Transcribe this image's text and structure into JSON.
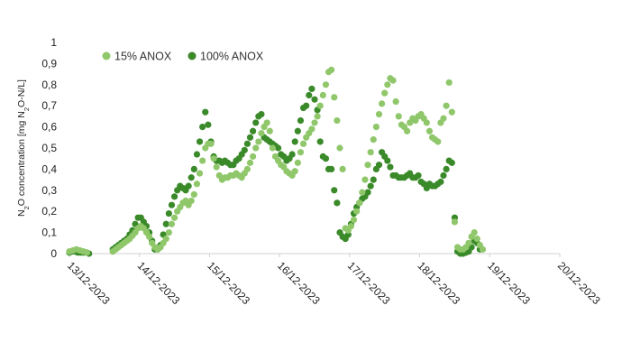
{
  "chart_data": {
    "type": "scatter",
    "ylabel": "N2O concentration [mg N2O-N/L]",
    "ylim": [
      0,
      1
    ],
    "yticks": [
      "0",
      "0,1",
      "0,2",
      "0,3",
      "0,4",
      "0,5",
      "0,6",
      "0,7",
      "0,8",
      "0,9",
      "1"
    ],
    "xlim": [
      "13/12-2023",
      "20/12-2023"
    ],
    "xticks": [
      "13/12-2023",
      "14/12-2023",
      "15/12-2023",
      "16/12-2023",
      "17/12-2023",
      "18/12-2023",
      "19/12-2023",
      "20/12-2023"
    ],
    "grid": false,
    "legend_position": "top-left",
    "x_unit": "days after 13/12-2023 00:00",
    "series": [
      {
        "name": "15% ANOX",
        "color": "#8fc76a",
        "points": [
          [
            0.0,
            0.01
          ],
          [
            0.05,
            0.015
          ],
          [
            0.1,
            0.02
          ],
          [
            0.15,
            0.015
          ],
          [
            0.2,
            0.01
          ],
          [
            0.25,
            0.005
          ],
          [
            0.62,
            0.01
          ],
          [
            0.66,
            0.02
          ],
          [
            0.7,
            0.03
          ],
          [
            0.74,
            0.04
          ],
          [
            0.78,
            0.05
          ],
          [
            0.82,
            0.06
          ],
          [
            0.86,
            0.07
          ],
          [
            0.9,
            0.085
          ],
          [
            0.94,
            0.1
          ],
          [
            0.98,
            0.12
          ],
          [
            1.02,
            0.13
          ],
          [
            1.06,
            0.12
          ],
          [
            1.1,
            0.1
          ],
          [
            1.14,
            0.08
          ],
          [
            1.18,
            0.05
          ],
          [
            1.22,
            0.03
          ],
          [
            1.26,
            0.02
          ],
          [
            1.3,
            0.03
          ],
          [
            1.34,
            0.05
          ],
          [
            1.38,
            0.07
          ],
          [
            1.42,
            0.1
          ],
          [
            1.46,
            0.14
          ],
          [
            1.5,
            0.17
          ],
          [
            1.54,
            0.2
          ],
          [
            1.58,
            0.22
          ],
          [
            1.62,
            0.24
          ],
          [
            1.66,
            0.25
          ],
          [
            1.7,
            0.23
          ],
          [
            1.74,
            0.25
          ],
          [
            1.78,
            0.28
          ],
          [
            1.82,
            0.33
          ],
          [
            1.86,
            0.38
          ],
          [
            1.9,
            0.44
          ],
          [
            1.94,
            0.5
          ],
          [
            1.98,
            0.52
          ],
          [
            2.02,
            0.52
          ],
          [
            2.06,
            0.45
          ],
          [
            2.1,
            0.41
          ],
          [
            2.14,
            0.37
          ],
          [
            2.18,
            0.35
          ],
          [
            2.22,
            0.36
          ],
          [
            2.26,
            0.36
          ],
          [
            2.3,
            0.37
          ],
          [
            2.34,
            0.37
          ],
          [
            2.38,
            0.38
          ],
          [
            2.42,
            0.37
          ],
          [
            2.46,
            0.36
          ],
          [
            2.5,
            0.38
          ],
          [
            2.54,
            0.4
          ],
          [
            2.58,
            0.43
          ],
          [
            2.62,
            0.46
          ],
          [
            2.66,
            0.5
          ],
          [
            2.7,
            0.53
          ],
          [
            2.74,
            0.57
          ],
          [
            2.78,
            0.6
          ],
          [
            2.82,
            0.62
          ],
          [
            2.86,
            0.58
          ],
          [
            2.9,
            0.5
          ],
          [
            2.94,
            0.46
          ],
          [
            2.98,
            0.44
          ],
          [
            3.02,
            0.42
          ],
          [
            3.06,
            0.41
          ],
          [
            3.1,
            0.39
          ],
          [
            3.14,
            0.38
          ],
          [
            3.18,
            0.37
          ],
          [
            3.22,
            0.39
          ],
          [
            3.26,
            0.43
          ],
          [
            3.3,
            0.48
          ],
          [
            3.34,
            0.52
          ],
          [
            3.38,
            0.55
          ],
          [
            3.42,
            0.57
          ],
          [
            3.46,
            0.59
          ],
          [
            3.5,
            0.62
          ],
          [
            3.54,
            0.65
          ],
          [
            3.58,
            0.7
          ],
          [
            3.62,
            0.75
          ],
          [
            3.66,
            0.8
          ],
          [
            3.7,
            0.86
          ],
          [
            3.74,
            0.87
          ],
          [
            3.78,
            0.74
          ],
          [
            3.82,
            0.63
          ],
          [
            3.86,
            0.5
          ],
          [
            3.9,
            0.4
          ],
          [
            3.94,
            0.12
          ],
          [
            3.98,
            0.11
          ],
          [
            4.02,
            0.13
          ],
          [
            4.06,
            0.16
          ],
          [
            4.1,
            0.2
          ],
          [
            4.14,
            0.24
          ],
          [
            4.18,
            0.29
          ],
          [
            4.22,
            0.35
          ],
          [
            4.26,
            0.42
          ],
          [
            4.3,
            0.48
          ],
          [
            4.34,
            0.54
          ],
          [
            4.38,
            0.6
          ],
          [
            4.42,
            0.66
          ],
          [
            4.46,
            0.71
          ],
          [
            4.5,
            0.76
          ],
          [
            4.54,
            0.8
          ],
          [
            4.58,
            0.83
          ],
          [
            4.62,
            0.82
          ],
          [
            4.66,
            0.72
          ],
          [
            4.7,
            0.65
          ],
          [
            4.74,
            0.61
          ],
          [
            4.78,
            0.6
          ],
          [
            4.82,
            0.58
          ],
          [
            4.86,
            0.62
          ],
          [
            4.9,
            0.64
          ],
          [
            4.94,
            0.63
          ],
          [
            4.98,
            0.65
          ],
          [
            5.02,
            0.66
          ],
          [
            5.06,
            0.64
          ],
          [
            5.1,
            0.62
          ],
          [
            5.14,
            0.58
          ],
          [
            5.18,
            0.55
          ],
          [
            5.22,
            0.54
          ],
          [
            5.26,
            0.53
          ],
          [
            5.3,
            0.62
          ],
          [
            5.34,
            0.64
          ],
          [
            5.38,
            0.7
          ],
          [
            5.42,
            0.81
          ],
          [
            5.46,
            0.67
          ],
          [
            5.5,
            0.15
          ],
          [
            5.54,
            0.03
          ],
          [
            5.58,
            0.02
          ],
          [
            5.62,
            0.02
          ],
          [
            5.66,
            0.03
          ],
          [
            5.7,
            0.05
          ],
          [
            5.74,
            0.08
          ],
          [
            5.78,
            0.1
          ],
          [
            5.82,
            0.07
          ],
          [
            5.86,
            0.04
          ],
          [
            5.9,
            0.02
          ]
        ]
      },
      {
        "name": "100% ANOX",
        "color": "#3a8a2a",
        "points": [
          [
            0.0,
            0.005
          ],
          [
            0.04,
            0.01
          ],
          [
            0.08,
            0.01
          ],
          [
            0.12,
            0.005
          ],
          [
            0.16,
            0.005
          ],
          [
            0.2,
            0.005
          ],
          [
            0.24,
            0.005
          ],
          [
            0.28,
            0.0
          ],
          [
            0.62,
            0.02
          ],
          [
            0.66,
            0.03
          ],
          [
            0.7,
            0.04
          ],
          [
            0.74,
            0.05
          ],
          [
            0.78,
            0.06
          ],
          [
            0.82,
            0.07
          ],
          [
            0.86,
            0.09
          ],
          [
            0.9,
            0.11
          ],
          [
            0.94,
            0.14
          ],
          [
            0.98,
            0.17
          ],
          [
            1.02,
            0.17
          ],
          [
            1.06,
            0.15
          ],
          [
            1.1,
            0.13
          ],
          [
            1.14,
            0.1
          ],
          [
            1.18,
            0.06
          ],
          [
            1.22,
            0.02
          ],
          [
            1.26,
            0.02
          ],
          [
            1.3,
            0.04
          ],
          [
            1.34,
            0.09
          ],
          [
            1.38,
            0.14
          ],
          [
            1.42,
            0.19
          ],
          [
            1.46,
            0.23
          ],
          [
            1.5,
            0.27
          ],
          [
            1.54,
            0.3
          ],
          [
            1.58,
            0.32
          ],
          [
            1.62,
            0.31
          ],
          [
            1.66,
            0.3
          ],
          [
            1.7,
            0.32
          ],
          [
            1.74,
            0.36
          ],
          [
            1.78,
            0.4
          ],
          [
            1.82,
            0.47
          ],
          [
            1.86,
            0.53
          ],
          [
            1.9,
            0.6
          ],
          [
            1.94,
            0.67
          ],
          [
            1.98,
            0.61
          ],
          [
            2.02,
            0.53
          ],
          [
            2.06,
            0.46
          ],
          [
            2.1,
            0.44
          ],
          [
            2.14,
            0.44
          ],
          [
            2.18,
            0.43
          ],
          [
            2.22,
            0.44
          ],
          [
            2.26,
            0.43
          ],
          [
            2.3,
            0.42
          ],
          [
            2.34,
            0.42
          ],
          [
            2.38,
            0.44
          ],
          [
            2.42,
            0.45
          ],
          [
            2.46,
            0.47
          ],
          [
            2.5,
            0.49
          ],
          [
            2.54,
            0.52
          ],
          [
            2.58,
            0.55
          ],
          [
            2.62,
            0.58
          ],
          [
            2.66,
            0.62
          ],
          [
            2.7,
            0.65
          ],
          [
            2.74,
            0.66
          ],
          [
            2.78,
            0.55
          ],
          [
            2.82,
            0.54
          ],
          [
            2.86,
            0.53
          ],
          [
            2.9,
            0.52
          ],
          [
            2.94,
            0.51
          ],
          [
            2.98,
            0.5
          ],
          [
            3.02,
            0.47
          ],
          [
            3.06,
            0.46
          ],
          [
            3.1,
            0.44
          ],
          [
            3.14,
            0.45
          ],
          [
            3.18,
            0.47
          ],
          [
            3.22,
            0.53
          ],
          [
            3.26,
            0.58
          ],
          [
            3.3,
            0.63
          ],
          [
            3.34,
            0.69
          ],
          [
            3.38,
            0.7
          ],
          [
            3.42,
            0.75
          ],
          [
            3.46,
            0.78
          ],
          [
            3.5,
            0.73
          ],
          [
            3.54,
            0.68
          ],
          [
            3.58,
            0.53
          ],
          [
            3.62,
            0.46
          ],
          [
            3.66,
            0.45
          ],
          [
            3.7,
            0.4
          ],
          [
            3.74,
            0.4
          ],
          [
            3.78,
            0.3
          ],
          [
            3.82,
            0.24
          ],
          [
            3.86,
            0.1
          ],
          [
            3.9,
            0.08
          ],
          [
            3.94,
            0.07
          ],
          [
            3.98,
            0.09
          ],
          [
            4.02,
            0.14
          ],
          [
            4.06,
            0.19
          ],
          [
            4.1,
            0.22
          ],
          [
            4.14,
            0.24
          ],
          [
            4.18,
            0.26
          ],
          [
            4.22,
            0.27
          ],
          [
            4.26,
            0.29
          ],
          [
            4.3,
            0.32
          ],
          [
            4.34,
            0.35
          ],
          [
            4.38,
            0.4
          ],
          [
            4.42,
            0.42
          ],
          [
            4.46,
            0.48
          ],
          [
            4.5,
            0.46
          ],
          [
            4.54,
            0.44
          ],
          [
            4.58,
            0.41
          ],
          [
            4.62,
            0.37
          ],
          [
            4.66,
            0.37
          ],
          [
            4.7,
            0.36
          ],
          [
            4.74,
            0.36
          ],
          [
            4.78,
            0.36
          ],
          [
            4.82,
            0.37
          ],
          [
            4.86,
            0.38
          ],
          [
            4.9,
            0.36
          ],
          [
            4.94,
            0.36
          ],
          [
            4.98,
            0.37
          ],
          [
            5.02,
            0.34
          ],
          [
            5.06,
            0.33
          ],
          [
            5.1,
            0.31
          ],
          [
            5.14,
            0.33
          ],
          [
            5.18,
            0.32
          ],
          [
            5.22,
            0.32
          ],
          [
            5.26,
            0.33
          ],
          [
            5.3,
            0.34
          ],
          [
            5.34,
            0.37
          ],
          [
            5.38,
            0.4
          ],
          [
            5.42,
            0.44
          ],
          [
            5.46,
            0.43
          ],
          [
            5.5,
            0.17
          ],
          [
            5.54,
            0.01
          ],
          [
            5.58,
            0.0
          ],
          [
            5.62,
            0.0
          ],
          [
            5.66,
            0.005
          ],
          [
            5.7,
            0.01
          ],
          [
            5.74,
            0.03
          ],
          [
            5.78,
            0.06
          ],
          [
            5.82,
            0.05
          ],
          [
            5.86,
            0.02
          ]
        ]
      }
    ]
  }
}
